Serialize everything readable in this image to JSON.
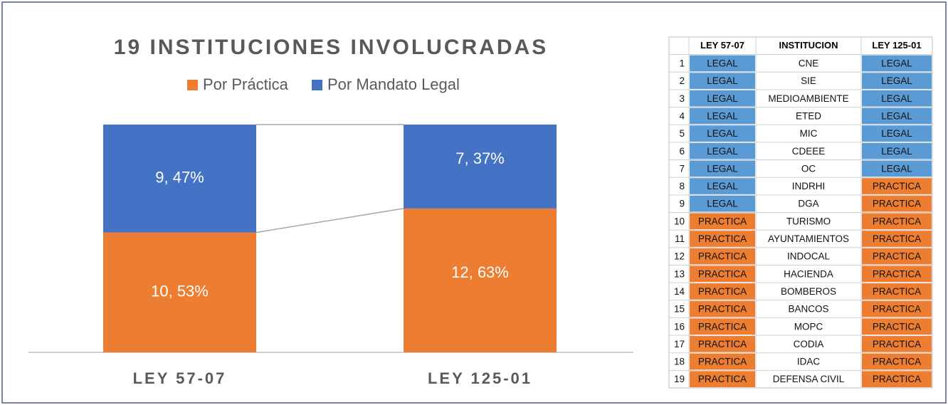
{
  "chart_data": {
    "type": "bar",
    "stacked": true,
    "title": "19 INSTITUCIONES INVOLUCRADAS",
    "categories": [
      "LEY 57-07",
      "LEY 125-01"
    ],
    "series": [
      {
        "name": "Por Práctica",
        "color": "#ed7d31",
        "values": [
          10,
          12
        ],
        "value_labels": [
          "10, 53%",
          "12, 63%"
        ]
      },
      {
        "name": "Por Mandato Legal",
        "color": "#4472c4",
        "values": [
          9,
          7
        ],
        "value_labels": [
          "9, 47%",
          "7, 37%"
        ]
      }
    ],
    "legend": "top"
  },
  "table": {
    "header": [
      "LEY 57-07",
      "INSTITUCION",
      "LEY 125-01"
    ],
    "cell_colors": {
      "LEGAL": "#5b9bd5",
      "PRACTICA": "#ed7d31"
    },
    "rows": [
      [
        1,
        "LEGAL",
        "CNE",
        "LEGAL"
      ],
      [
        2,
        "LEGAL",
        "SIE",
        "LEGAL"
      ],
      [
        3,
        "LEGAL",
        "MEDIOAMBIENTE",
        "LEGAL"
      ],
      [
        4,
        "LEGAL",
        "ETED",
        "LEGAL"
      ],
      [
        5,
        "LEGAL",
        "MIC",
        "LEGAL"
      ],
      [
        6,
        "LEGAL",
        "CDEEE",
        "LEGAL"
      ],
      [
        7,
        "LEGAL",
        "OC",
        "LEGAL"
      ],
      [
        8,
        "LEGAL",
        "INDRHI",
        "PRACTICA"
      ],
      [
        9,
        "LEGAL",
        "DGA",
        "PRACTICA"
      ],
      [
        10,
        "PRACTICA",
        "TURISMO",
        "PRACTICA"
      ],
      [
        11,
        "PRACTICA",
        "AYUNTAMIENTOS",
        "PRACTICA"
      ],
      [
        12,
        "PRACTICA",
        "INDOCAL",
        "PRACTICA"
      ],
      [
        13,
        "PRACTICA",
        "HACIENDA",
        "PRACTICA"
      ],
      [
        14,
        "PRACTICA",
        "BOMBEROS",
        "PRACTICA"
      ],
      [
        15,
        "PRACTICA",
        "BANCOS",
        "PRACTICA"
      ],
      [
        16,
        "PRACTICA",
        "MOPC",
        "PRACTICA"
      ],
      [
        17,
        "PRACTICA",
        "CODIA",
        "PRACTICA"
      ],
      [
        18,
        "PRACTICA",
        "IDAC",
        "PRACTICA"
      ],
      [
        19,
        "PRACTICA",
        "DEFENSA CIVIL",
        "PRACTICA"
      ]
    ]
  }
}
